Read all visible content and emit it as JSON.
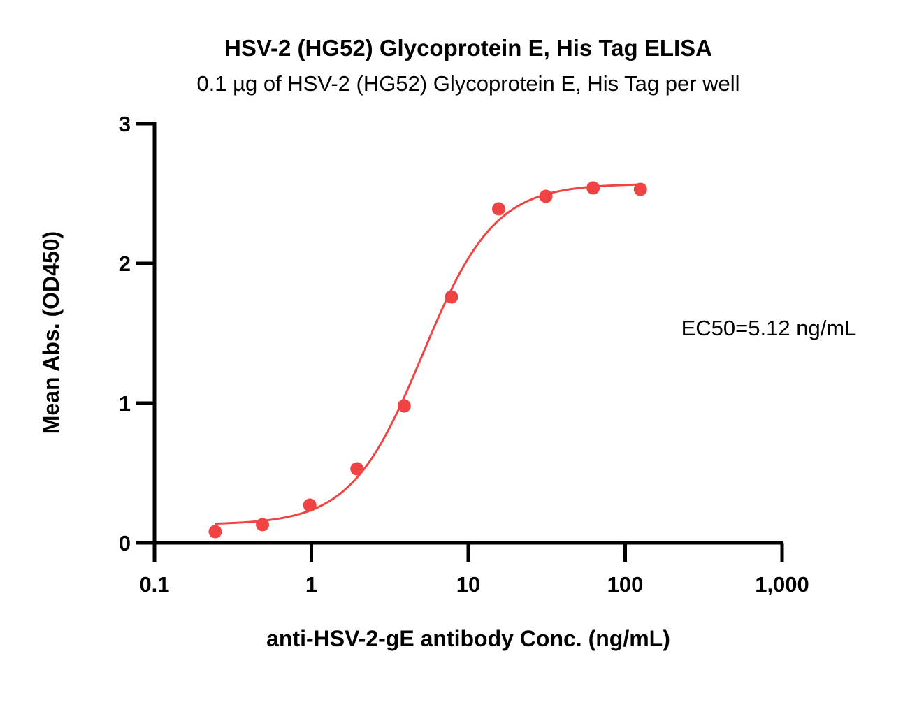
{
  "chart_data": {
    "type": "scatter",
    "title": "HSV-2 (HG52) Glycoprotein E, His Tag ELISA",
    "subtitle": "0.1 µg of HSV-2 (HG52) Glycoprotein E, His Tag per well",
    "xlabel": "anti-HSV-2-gE antibody Conc. (ng/mL)",
    "ylabel": "Mean Abs. (OD450)",
    "x_scale": "log",
    "xlim": [
      0.1,
      1000
    ],
    "ylim": [
      0,
      3
    ],
    "x_ticks": [
      0.1,
      1,
      10,
      100,
      1000
    ],
    "x_tick_labels": [
      "0.1",
      "1",
      "10",
      "100",
      "1,000"
    ],
    "y_ticks": [
      0,
      1,
      2,
      3
    ],
    "y_tick_labels": [
      "0",
      "1",
      "2",
      "3"
    ],
    "grid": false,
    "series": [
      {
        "color": "#f04444",
        "x": [
          0.244,
          0.488,
          0.977,
          1.953,
          3.906,
          7.813,
          15.625,
          31.25,
          62.5,
          125
        ],
        "y": [
          0.08,
          0.13,
          0.27,
          0.53,
          0.98,
          1.76,
          2.39,
          2.48,
          2.54,
          2.53
        ]
      }
    ],
    "fit_curve": {
      "color": "#f04444",
      "model": "4PL",
      "bottom": 0.13,
      "top": 2.57,
      "ec50": 5.12,
      "hill": 1.9,
      "x_range": [
        0.244,
        125
      ]
    },
    "annotation": "EC50=5.12 ng/mL"
  }
}
